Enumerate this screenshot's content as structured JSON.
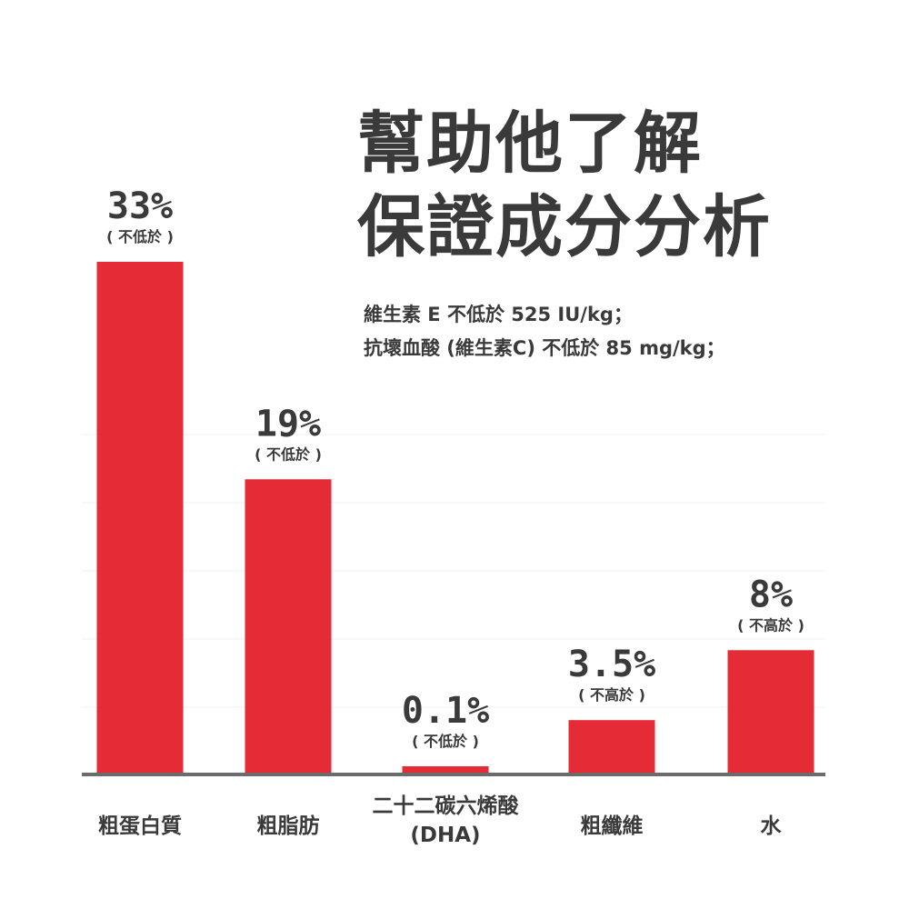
{
  "title_lines": [
    "幫助他了解",
    "保證成分分析"
  ],
  "notes": [
    "維生素 E 不低於 525 IU/kg；",
    "抗壞血酸 (維生素C) 不低於 85 mg/kg；"
  ],
  "colors": {
    "bar": "#e52b35",
    "text": "#3a3a3a",
    "baseline": "#6b6b6b"
  },
  "chart_data": {
    "type": "bar",
    "title": "幫助他了解保證成分分析",
    "categories": [
      [
        "粗蛋白質"
      ],
      [
        "粗脂肪"
      ],
      [
        "二十二碳六烯酸",
        "(DHA)"
      ],
      [
        "粗纖維"
      ],
      [
        "水"
      ]
    ],
    "values": [
      33,
      19,
      0.1,
      3.5,
      8
    ],
    "value_labels": [
      "33%",
      "19%",
      "0.1%",
      "3.5%",
      "8%"
    ],
    "qualifiers": [
      "( 不低於 )",
      "( 不低於 )",
      "( 不低於 )",
      "( 不高於 )",
      "( 不高於 )"
    ],
    "ylim": [
      0,
      33
    ],
    "grid": true,
    "legend": "none"
  }
}
